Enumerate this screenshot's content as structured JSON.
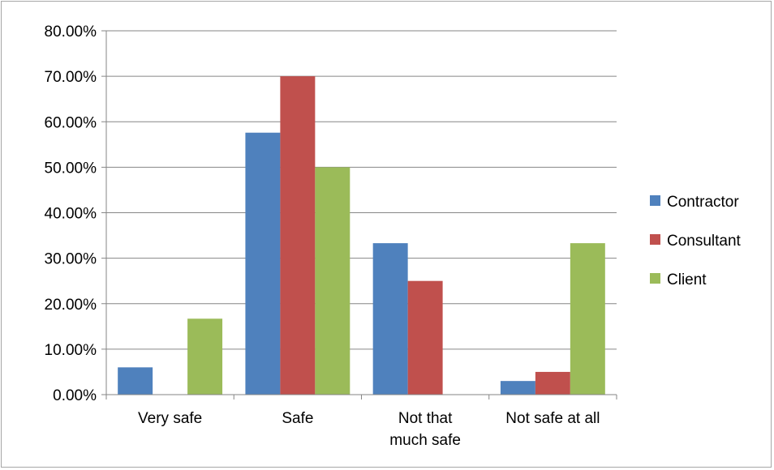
{
  "chart_data": {
    "type": "bar",
    "categories": [
      [
        "Very safe"
      ],
      [
        "Safe"
      ],
      [
        "Not that",
        "much safe"
      ],
      [
        "Not safe at all"
      ]
    ],
    "series": [
      {
        "name": "Contractor",
        "color": "#4f81bd",
        "values": [
          6.0,
          57.6,
          33.3,
          3.0
        ]
      },
      {
        "name": "Consultant",
        "color": "#c0504d",
        "values": [
          0.0,
          70.0,
          25.0,
          5.0
        ]
      },
      {
        "name": "Client",
        "color": "#9bbb59",
        "values": [
          16.7,
          50.0,
          0.0,
          33.3
        ]
      }
    ],
    "y_ticks": [
      "0.00%",
      "10.00%",
      "20.00%",
      "30.00%",
      "40.00%",
      "50.00%",
      "60.00%",
      "70.00%",
      "80.00%"
    ],
    "ylim": [
      0,
      80
    ],
    "grid": true,
    "legend_position": "right",
    "title": "",
    "xlabel": "",
    "ylabel": ""
  }
}
